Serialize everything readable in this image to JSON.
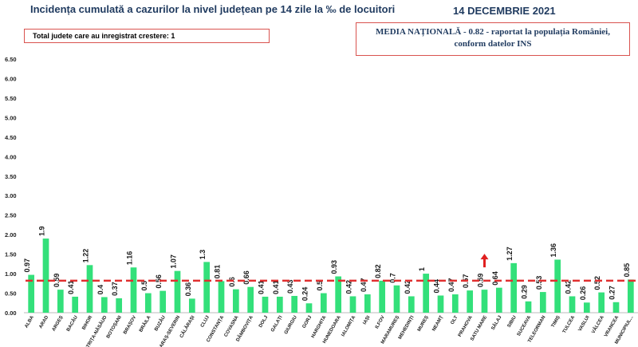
{
  "header": {
    "title": "Incidența cumulată a cazurilor la nivel județean pe 14 zile la ‰ de locuitori",
    "date": "14 DECEMBRIE 2021",
    "increase_box": "Total judete care au inregistrat crestere: 1",
    "national_box_line1": "MEDIA NAȚIONALĂ - 0.82 - raportat la populația României,",
    "national_box_line2": "conform datelor INS"
  },
  "colors": {
    "bar": "#33e07a",
    "average_line": "#e03030",
    "increase_arrow": "#e02020",
    "title": "#1f3a5f"
  },
  "chart_data": {
    "type": "bar",
    "categories": [
      "ALBA",
      "ARAD",
      "ARGEȘ",
      "BACĂU",
      "BIHOR",
      "BISTRIȚA-NĂSĂUD",
      "BOTOȘANI",
      "BRAȘOV",
      "BRĂILA",
      "BUZĂU",
      "CARAȘ-SEVERIN",
      "CĂLĂRAȘI",
      "CLUJ",
      "CONSTANȚA",
      "COVASNA",
      "DÂMBOVIȚA",
      "DOLJ",
      "GALAȚI",
      "GIURGIU",
      "GORJ",
      "HARGHITA",
      "HUNEDOARA",
      "IALOMIȚA",
      "IAȘI",
      "ILFOV",
      "MARAMUREȘ",
      "MEHEDINȚI",
      "MUREȘ",
      "NEAMȚ",
      "OLT",
      "PRAHOVA",
      "SATU MARE",
      "SĂLAJ",
      "SIBIU",
      "SUCEAVA",
      "TELEORMAN",
      "TIMIȘ",
      "TULCEA",
      "VASLUI",
      "VÂLCEA",
      "VRANCEA",
      "MUNICIPIUL..."
    ],
    "values": [
      0.97,
      1.9,
      0.59,
      0.41,
      1.22,
      0.4,
      0.37,
      1.16,
      0.5,
      0.56,
      1.07,
      0.36,
      1.3,
      0.81,
      0.6,
      0.66,
      0.41,
      0.41,
      0.43,
      0.24,
      0.5,
      0.93,
      0.42,
      0.47,
      0.82,
      0.7,
      0.42,
      1,
      0.44,
      0.47,
      0.57,
      0.59,
      0.64,
      1.27,
      0.29,
      0.53,
      1.36,
      0.42,
      0.26,
      0.52,
      0.27,
      0.85
    ],
    "value_labels": [
      "0.97",
      "1.9",
      "0.59",
      "0.41",
      "1.22",
      "0.4",
      "0.37",
      "1.16",
      "0.5",
      "0.56",
      "1.07",
      "0.36",
      "1.3",
      "0.81",
      "0.6",
      "0.66",
      "0.41",
      "0.41",
      "0.43",
      "0.24",
      "0.5",
      "0.93",
      "0.42",
      "0.47",
      "0.82",
      "0.7",
      "0.42",
      "1",
      "0.44",
      "0.47",
      "0.57",
      "0.59",
      "0.64",
      "1.27",
      "0.29",
      "0.53",
      "1.36",
      "0.42",
      "0.26",
      "0.52",
      "0.27",
      "0.85"
    ],
    "y_ticks": [
      "0.00",
      "0.50",
      "1.00",
      "1.50",
      "2.00",
      "2.50",
      "3.00",
      "3.50",
      "4.00",
      "4.50",
      "5.00",
      "5.50",
      "6.00",
      "6.50"
    ],
    "ylim": [
      0,
      6.5
    ],
    "average": 0.82,
    "increase_marker_category": "SATU MARE",
    "grid": false
  }
}
